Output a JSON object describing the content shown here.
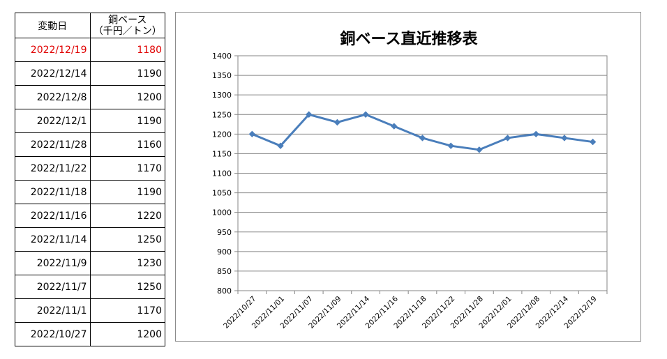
{
  "table": {
    "header_date": "変動日",
    "header_price_line1": "銅ベース",
    "header_price_line2": "（千円／トン）",
    "rows": [
      {
        "date": "2022/12/19",
        "price": "1180"
      },
      {
        "date": "2022/12/14",
        "price": "1190"
      },
      {
        "date": "2022/12/8",
        "price": "1200"
      },
      {
        "date": "2022/12/1",
        "price": "1190"
      },
      {
        "date": "2022/11/28",
        "price": "1160"
      },
      {
        "date": "2022/11/22",
        "price": "1170"
      },
      {
        "date": "2022/11/18",
        "price": "1190"
      },
      {
        "date": "2022/11/16",
        "price": "1220"
      },
      {
        "date": "2022/11/14",
        "price": "1250"
      },
      {
        "date": "2022/11/9",
        "price": "1230"
      },
      {
        "date": "2022/11/7",
        "price": "1250"
      },
      {
        "date": "2022/11/1",
        "price": "1170"
      },
      {
        "date": "2022/10/27",
        "price": "1200"
      }
    ]
  },
  "chart_data": {
    "type": "line",
    "title": "銅ベース直近推移表",
    "xlabel": "",
    "ylabel": "",
    "categories": [
      "2022/10/27",
      "2022/11/01",
      "2022/11/07",
      "2022/11/09",
      "2022/11/14",
      "2022/11/16",
      "2022/11/18",
      "2022/11/22",
      "2022/11/28",
      "2022/12/01",
      "2022/12/08",
      "2022/12/14",
      "2022/12/19"
    ],
    "series": [
      {
        "values": [
          1200,
          1170,
          1250,
          1230,
          1250,
          1220,
          1190,
          1170,
          1160,
          1190,
          1200,
          1190,
          1180
        ]
      }
    ],
    "ylim": [
      800,
      1400
    ],
    "yticks": [
      800,
      850,
      900,
      950,
      1000,
      1050,
      1100,
      1150,
      1200,
      1250,
      1300,
      1350,
      1400
    ],
    "grid": true,
    "legend": "none",
    "colors": {
      "line": "#4a7ebb",
      "grid": "#868686",
      "latest_row_text": "#e00000"
    }
  }
}
